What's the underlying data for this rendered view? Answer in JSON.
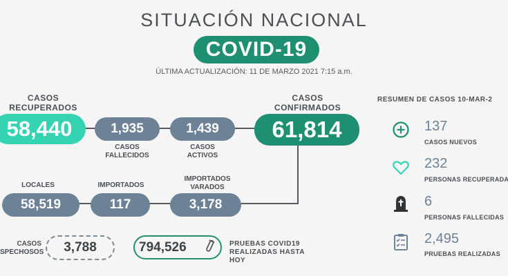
{
  "header": {
    "title": "SITUACIÓN NACIONAL",
    "badge": "COVID-19",
    "updated": "ÚLTIMA ACTUALIZACIÓN: 11 DE MARZO 2021 7:15 a.m."
  },
  "row1": {
    "recuperados": {
      "label_1": "CASOS",
      "label_2": "RECUPERADOS",
      "value": "58,440"
    },
    "fallecidos": {
      "value": "1,935",
      "label_1": "CASOS",
      "label_2": "FALLECIDOS"
    },
    "activos": {
      "value": "1,439",
      "label_1": "CASOS",
      "label_2": "ACTIVOS"
    },
    "confirmados": {
      "label_1": "CASOS",
      "label_2": "CONFIRMADOS",
      "value": "61,814"
    }
  },
  "row2": {
    "locales": {
      "label": "LOCALES",
      "value": "58,519"
    },
    "importados": {
      "label": "IMPORTADOS",
      "value": "117"
    },
    "varados": {
      "label_1": "IMPORTADOS",
      "label_2": "VARADOS",
      "value": "3,178"
    }
  },
  "row3": {
    "sospechosos": {
      "label_1": "CASOS",
      "label_2": "SPECHOSOS",
      "value": "3,788"
    },
    "pruebas": {
      "value": "794,526",
      "label_1": "PRUEBAS COVID19",
      "label_2": "REALIZADAS HASTA HOY"
    }
  },
  "resumen": {
    "title": "RESUMEN DE CASOS 10-MAR-2",
    "items": [
      {
        "icon": "plus-circle-icon",
        "value": "137",
        "label": "CASOS NUEVOS"
      },
      {
        "icon": "heart-icon",
        "value": "232",
        "label": "PERSONAS RECUPERADAS"
      },
      {
        "icon": "tombstone-icon",
        "value": "6",
        "label": "PERSONAS FALLECIDAS"
      },
      {
        "icon": "clipboard-icon",
        "value": "2,495",
        "label": "PRUEBAS REALIZADAS"
      }
    ]
  },
  "colors": {
    "green": "#1f8f71",
    "mint": "#34d4b2",
    "slate": "#6e8297",
    "text": "#4a4f55"
  }
}
